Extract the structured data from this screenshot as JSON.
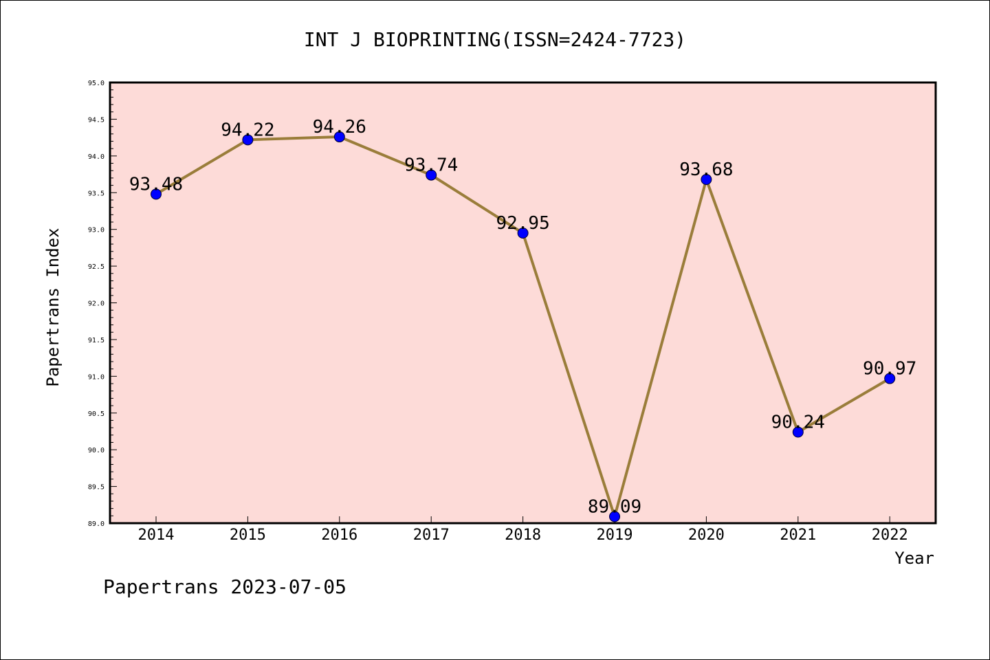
{
  "chart_data": {
    "type": "line",
    "title": "INT J BIOPRINTING(ISSN=2424-7723)",
    "xlabel": "Year",
    "ylabel": "Papertrans Index",
    "categories": [
      "2014",
      "2015",
      "2016",
      "2017",
      "2018",
      "2019",
      "2020",
      "2021",
      "2022"
    ],
    "series": [
      {
        "values": [
          93.48,
          94.22,
          94.26,
          93.74,
          92.95,
          89.09,
          93.68,
          90.24,
          90.97
        ]
      }
    ],
    "data_labels": [
      "93.48",
      "94.22",
      "94.26",
      "93.74",
      "92.95",
      "89.09",
      "93.68",
      "90.24",
      "90.97"
    ],
    "ylim": [
      89.0,
      95.0
    ],
    "yticks": [
      "89.0",
      "89.5",
      "90.0",
      "90.5",
      "91.0",
      "91.5",
      "92.0",
      "92.5",
      "93.0",
      "93.5",
      "94.0",
      "94.5",
      "95.0"
    ],
    "grid": false,
    "colors": {
      "plot_background": "#fddbd8",
      "line": "#9a7d3a",
      "marker": "#0000ff"
    }
  },
  "footer": "Papertrans 2023-07-05"
}
